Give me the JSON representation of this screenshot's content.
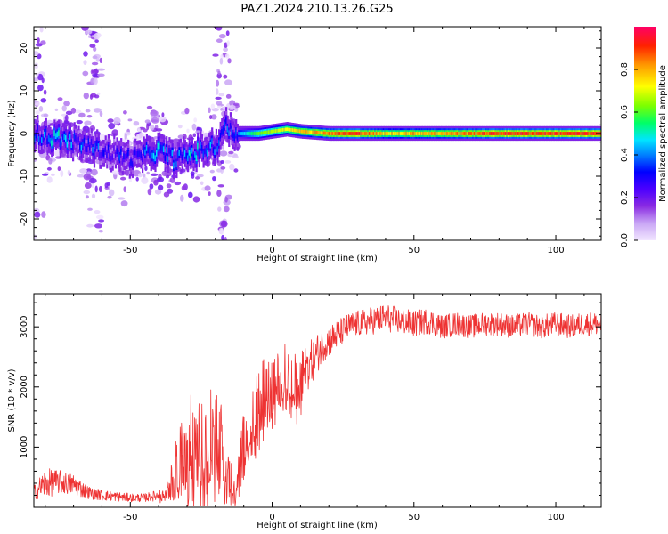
{
  "title": "PAZ1.2024.210.13.26.G25",
  "chart_data": [
    {
      "type": "heatmap",
      "xlabel": "Height of straight line (km)",
      "ylabel": "Frequency (Hz)",
      "xlim": [
        -84,
        116
      ],
      "ylim": [
        -25,
        25
      ],
      "x_ticks": [
        -50,
        0,
        50,
        100
      ],
      "y_ticks": [
        -20,
        -10,
        0,
        10,
        20
      ],
      "colorbar": {
        "label": "Normalized spectral amplitude",
        "range": [
          0,
          1
        ],
        "ticks": [
          "0.0",
          "0.2",
          "0.4",
          "0.6",
          "0.8"
        ],
        "colors": [
          "#f2e6ff",
          "#c9a6f5",
          "#8a2be2",
          "#4b00ff",
          "#0000ff",
          "#0080ff",
          "#00e5ff",
          "#00ff66",
          "#7cff00",
          "#ffff00",
          "#ff9900",
          "#ff2200",
          "#ff0066"
        ]
      },
      "ridge": {
        "x": [
          -84,
          -80,
          -75,
          -70,
          -65,
          -60,
          -55,
          -50,
          -45,
          -40,
          -35,
          -30,
          -25,
          -20,
          -17,
          -14,
          -10,
          -5,
          0,
          5,
          10,
          20,
          30,
          40,
          50,
          60,
          70,
          80,
          90,
          100,
          110,
          116
        ],
        "freq": [
          0,
          -1,
          -1,
          -2,
          -3,
          -4,
          -5,
          -6,
          -5,
          -4,
          -6,
          -5,
          -4,
          -3,
          2,
          0,
          0,
          0,
          0.5,
          1,
          0.5,
          0,
          0,
          0,
          0,
          0,
          0,
          0,
          0,
          0,
          0,
          0
        ],
        "amplitude": [
          0.35,
          0.4,
          0.45,
          0.35,
          0.4,
          0.3,
          0.3,
          0.3,
          0.35,
          0.45,
          0.4,
          0.45,
          0.4,
          0.4,
          0.35,
          0.4,
          0.5,
          0.65,
          0.7,
          0.75,
          0.8,
          0.9,
          0.95,
          0.8,
          0.85,
          0.85,
          0.9,
          0.95,
          0.95,
          0.95,
          0.95,
          0.95
        ]
      }
    },
    {
      "type": "line",
      "xlabel": "Height of straight line (km)",
      "ylabel": "SNR (10 * v/v)",
      "xlim": [
        -84,
        116
      ],
      "ylim": [
        0,
        3550
      ],
      "x_ticks": [
        -50,
        0,
        50,
        100
      ],
      "y_ticks": [
        1000,
        2000,
        3000
      ],
      "series": [
        {
          "color": "#ee3333",
          "x": [
            -84,
            -80,
            -75,
            -70,
            -65,
            -60,
            -55,
            -50,
            -45,
            -40,
            -37,
            -34,
            -30,
            -27,
            -24,
            -21,
            -18,
            -15,
            -13,
            -11,
            -8,
            -5,
            -2,
            0,
            3,
            6,
            9,
            12,
            15,
            18,
            21,
            24,
            27,
            30,
            35,
            40,
            45,
            50,
            55,
            60,
            65,
            70,
            75,
            80,
            85,
            90,
            95,
            100,
            105,
            110,
            116
          ],
          "values": [
            250,
            400,
            420,
            380,
            250,
            200,
            180,
            160,
            160,
            200,
            280,
            700,
            1000,
            1150,
            1050,
            1200,
            1100,
            600,
            200,
            900,
            1400,
            1700,
            2000,
            1900,
            2200,
            2300,
            2000,
            2300,
            2500,
            2700,
            2800,
            2900,
            3000,
            3050,
            3100,
            3150,
            3100,
            3050,
            3100,
            3000,
            3050,
            3000,
            3050,
            3050,
            3000,
            3050,
            3000,
            3050,
            3000,
            3050,
            3050
          ],
          "noise": [
            120,
            250,
            200,
            180,
            110,
            90,
            80,
            70,
            70,
            90,
            120,
            400,
            800,
            800,
            800,
            800,
            700,
            400,
            120,
            500,
            500,
            550,
            600,
            500,
            500,
            500,
            500,
            400,
            350,
            280,
            260,
            240,
            230,
            220,
            230,
            240,
            220,
            220,
            220,
            200,
            200,
            200,
            200,
            200,
            200,
            200,
            200,
            200,
            200,
            200,
            200
          ]
        }
      ]
    }
  ]
}
